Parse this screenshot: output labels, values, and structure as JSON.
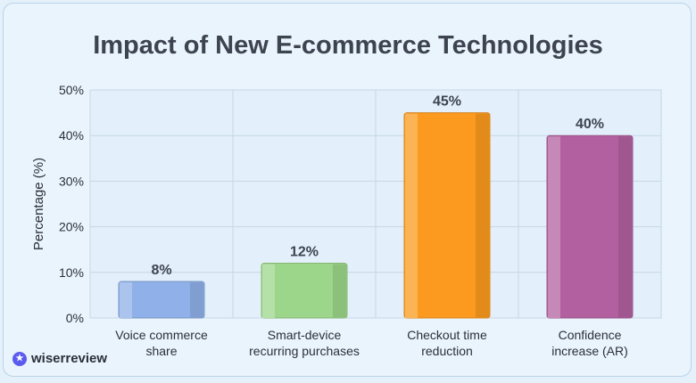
{
  "chart_data": {
    "type": "bar",
    "title": "Impact of New E-commerce Technologies",
    "xlabel": "",
    "ylabel": "Percentage (%)",
    "ylim": [
      0,
      50
    ],
    "yticks": [
      "0%",
      "10%",
      "20%",
      "30%",
      "40%",
      "50%"
    ],
    "grid": true,
    "categories": [
      [
        "Voice commerce",
        "share"
      ],
      [
        "Smart-device",
        "recurring purchases"
      ],
      [
        "Checkout time",
        "reduction"
      ],
      [
        "Confidence",
        "increase (AR)"
      ]
    ],
    "values": [
      8,
      12,
      45,
      40
    ],
    "data_labels": [
      "8%",
      "12%",
      "45%",
      "40%"
    ],
    "colors": [
      "#8fb0e8",
      "#9cd68a",
      "#fb9a1e",
      "#b2609f"
    ]
  },
  "brand": {
    "name": "wiserreview",
    "icon": "star-badge-icon"
  }
}
